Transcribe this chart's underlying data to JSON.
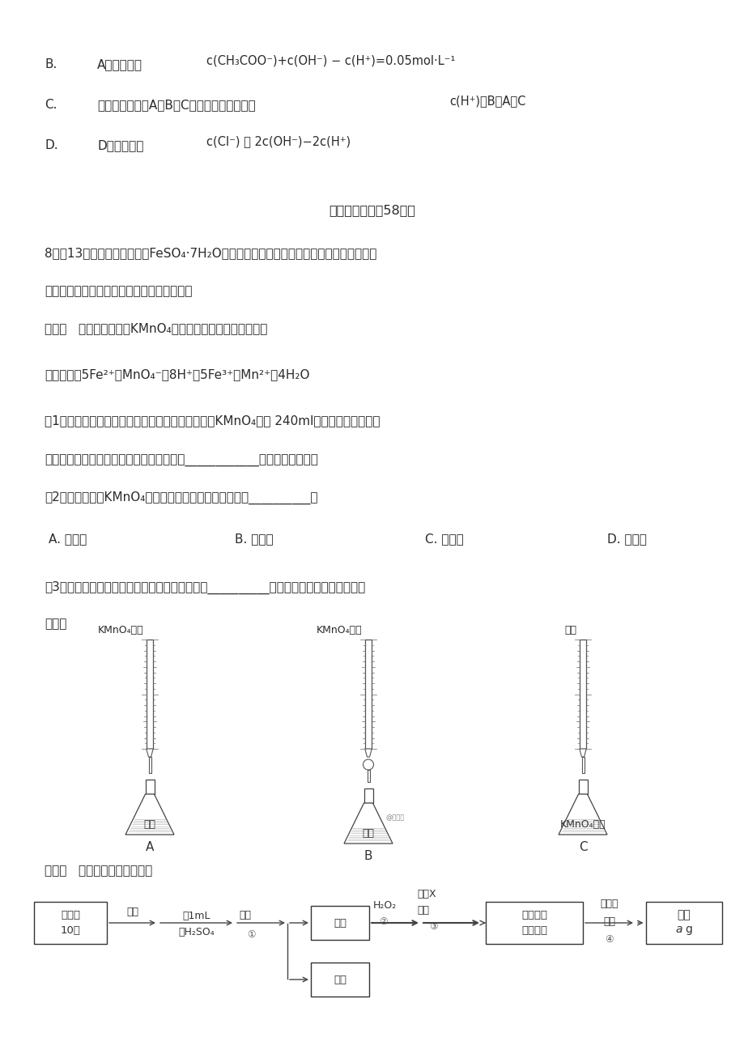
{
  "bg_color": "#ffffff",
  "text_color": "#2a2a2a",
  "page_width": 9.2,
  "page_height": 13.02
}
